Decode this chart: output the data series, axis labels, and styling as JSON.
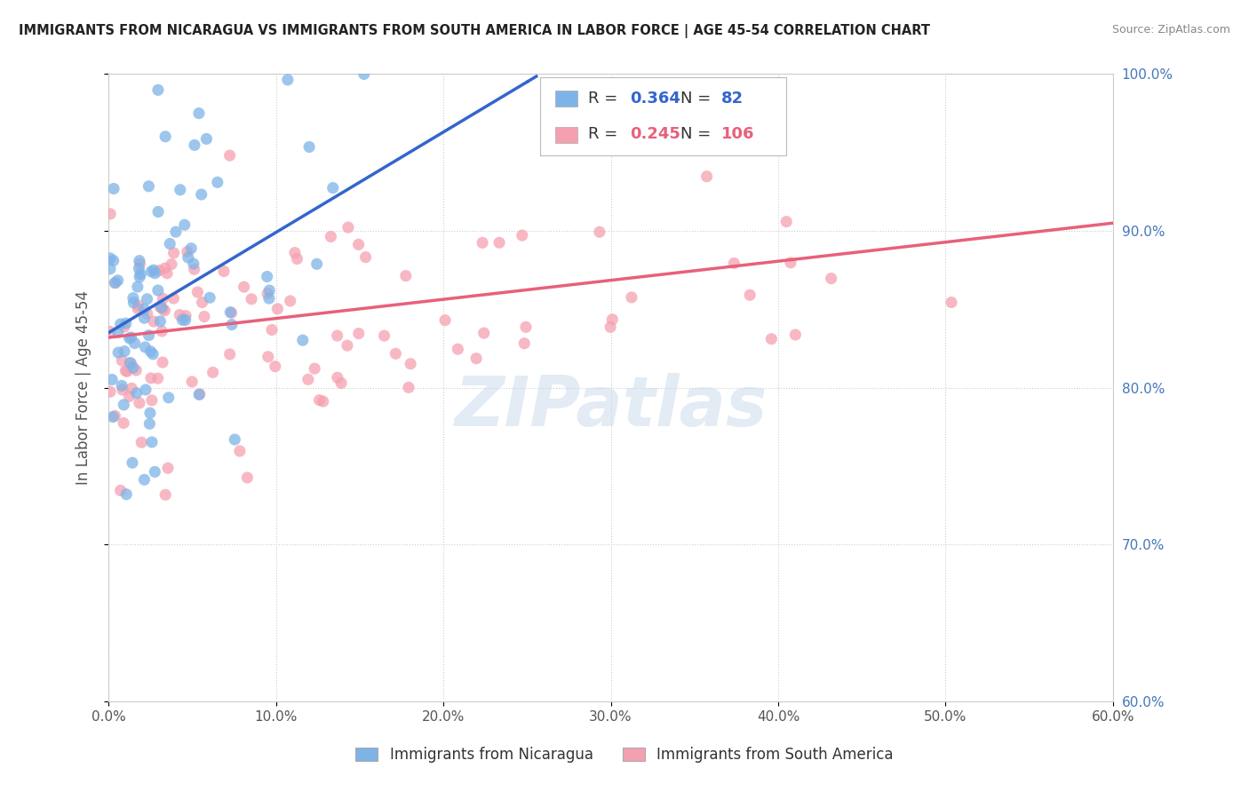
{
  "title": "IMMIGRANTS FROM NICARAGUA VS IMMIGRANTS FROM SOUTH AMERICA IN LABOR FORCE | AGE 45-54 CORRELATION CHART",
  "source": "Source: ZipAtlas.com",
  "ylabel": "In Labor Force | Age 45-54",
  "legend_label1": "Immigrants from Nicaragua",
  "legend_label2": "Immigrants from South America",
  "R1": 0.364,
  "N1": 82,
  "R2": 0.245,
  "N2": 106,
  "color1": "#7EB3E8",
  "color2": "#F5A0B0",
  "trendline1_color": "#3366CC",
  "trendline2_color": "#E8607A",
  "xlim": [
    0.0,
    0.6
  ],
  "ylim": [
    0.6,
    1.0
  ],
  "xtick_vals": [
    0.0,
    0.1,
    0.2,
    0.3,
    0.4,
    0.5,
    0.6
  ],
  "ytick_vals": [
    0.6,
    0.7,
    0.8,
    0.9,
    1.0
  ],
  "watermark": "ZIPatlas",
  "background_color": "#ffffff",
  "trendline1_x0": 0.0,
  "trendline1_y0": 0.835,
  "trendline1_x1": 0.25,
  "trendline1_y1": 0.995,
  "trendline2_x0": 0.0,
  "trendline2_y0": 0.832,
  "trendline2_x1": 0.6,
  "trendline2_y1": 0.905
}
